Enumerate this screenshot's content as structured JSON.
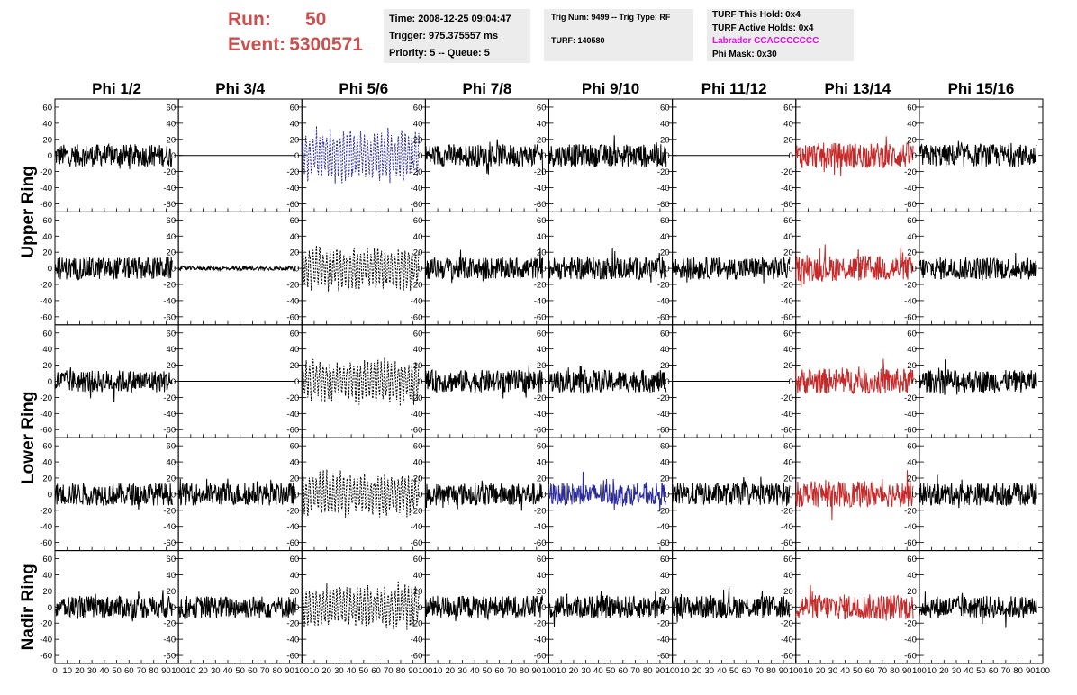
{
  "header": {
    "run_label": "Run:",
    "run_value": "50",
    "event_label": "Event:",
    "event_value": "5300571",
    "time": "Time: 2008-12-25 09:04:47",
    "trigger": "Trigger: 975.375557 ms",
    "priority": "Priority: 5 -- Queue: 5",
    "trig_num": "Trig Num: 9499 -- Trig Type: RF",
    "turf": "TURF: 140580",
    "turf_this_hold": "TURF This Hold: 0x4",
    "turf_active_holds": "TURF Active Holds: 0x4",
    "labrador": "Labrador CCACCCCCCC",
    "phi_mask": "Phi Mask: 0x30"
  },
  "colors": {
    "header_red": "#c8504f",
    "labrador_magenta": "#e010e0",
    "trace_black": "#000000",
    "trace_blue": "#2b2b9b",
    "trace_red": "#c42a2a"
  },
  "chart_data": {
    "type": "line",
    "columns": [
      "Phi 1/2",
      "Phi 3/4",
      "Phi 5/6",
      "Phi 7/8",
      "Phi 9/10",
      "Phi 11/12",
      "Phi 13/14",
      "Phi 15/16"
    ],
    "rings": [
      "Upper Ring",
      "Lower Ring",
      "Nadir Ring"
    ],
    "x_ticks": [
      "0",
      "10",
      "20",
      "30",
      "40",
      "50",
      "60",
      "70",
      "80",
      "90",
      "100"
    ],
    "y_ticks": [
      "60",
      "40",
      "20",
      "0",
      "-20",
      "-40",
      "-60"
    ],
    "xlim": [
      0,
      100
    ],
    "ylim": [
      -70,
      70
    ],
    "rows": [
      [
        "black",
        "flat",
        "blue-dashed",
        "black",
        "black",
        "flat",
        "red",
        "black"
      ],
      [
        "black",
        "small",
        "black-dashed",
        "black",
        "black",
        "black",
        "red",
        "black"
      ],
      [
        "black",
        "flat",
        "black-dashed",
        "black",
        "black",
        "flat",
        "red",
        "black"
      ],
      [
        "black",
        "black",
        "black-dashed",
        "black",
        "blue",
        "black",
        "red",
        "black"
      ],
      [
        "black",
        "black",
        "black-dashed",
        "black",
        "black",
        "black",
        "red",
        "black"
      ]
    ],
    "trace_x_range": [
      0,
      95
    ]
  }
}
